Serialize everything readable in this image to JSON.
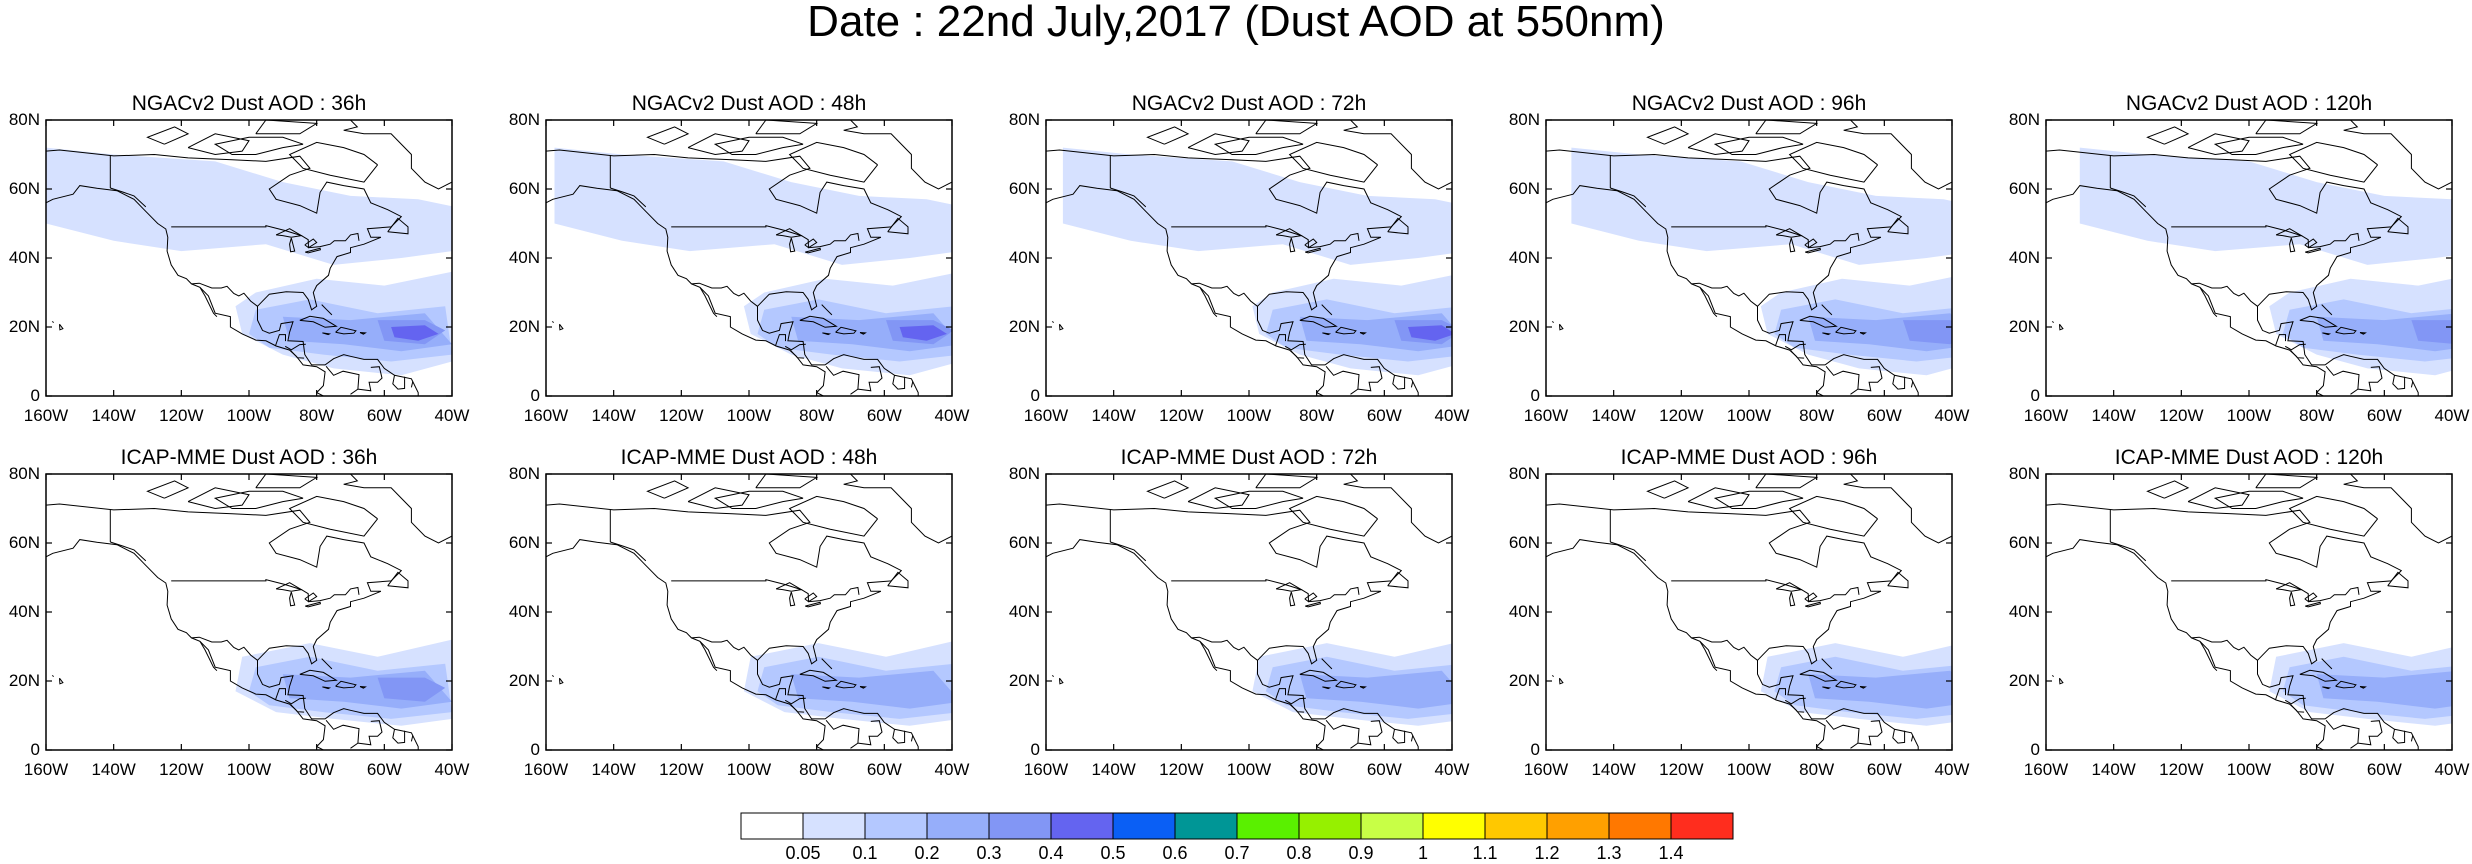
{
  "title": "Date : 22nd July,2017 (Dust AOD at 550nm)",
  "lat_labels": [
    "80N",
    "60N",
    "40N",
    "20N",
    "0"
  ],
  "lon_labels": [
    "160W",
    "140W",
    "120W",
    "100W",
    "80W",
    "60W",
    "40W"
  ],
  "panels": [
    {
      "title": "NGACv2 Dust AOD : 36h",
      "model": "NGACv2",
      "lead": "36h",
      "intensity": 1.0
    },
    {
      "title": "NGACv2 Dust AOD : 48h",
      "model": "NGACv2",
      "lead": "48h",
      "intensity": 1.0
    },
    {
      "title": "NGACv2 Dust AOD : 72h",
      "model": "NGACv2",
      "lead": "72h",
      "intensity": 0.95
    },
    {
      "title": "NGACv2 Dust AOD : 96h",
      "model": "NGACv2",
      "lead": "96h",
      "intensity": 0.9
    },
    {
      "title": "NGACv2 Dust AOD : 120h",
      "model": "NGACv2",
      "lead": "120h",
      "intensity": 0.9
    },
    {
      "title": "ICAP-MME Dust AOD : 36h",
      "model": "ICAP-MME",
      "lead": "36h",
      "intensity": 0.8
    },
    {
      "title": "ICAP-MME Dust AOD : 48h",
      "model": "ICAP-MME",
      "lead": "48h",
      "intensity": 0.75
    },
    {
      "title": "ICAP-MME Dust AOD : 72h",
      "model": "ICAP-MME",
      "lead": "72h",
      "intensity": 0.6
    },
    {
      "title": "ICAP-MME Dust AOD : 96h",
      "model": "ICAP-MME",
      "lead": "96h",
      "intensity": 0.6
    },
    {
      "title": "ICAP-MME Dust AOD : 120h",
      "model": "ICAP-MME",
      "lead": "120h",
      "intensity": 0.55
    }
  ],
  "colorbar": {
    "labels": [
      "0.05",
      "0.1",
      "0.2",
      "0.3",
      "0.4",
      "0.5",
      "0.6",
      "0.7",
      "0.8",
      "0.9",
      "1",
      "1.1",
      "1.2",
      "1.3",
      "1.4"
    ],
    "colors": [
      "#ffffff",
      "#d6e1ff",
      "#b4c8ff",
      "#96aefa",
      "#8296f5",
      "#6464f0",
      "#0a5ff5",
      "#009696",
      "#5af000",
      "#96f000",
      "#c8ff46",
      "#ffff00",
      "#ffc800",
      "#ffa000",
      "#ff7800",
      "#ff2d1e"
    ]
  },
  "map_extent": {
    "lon": [
      -160,
      -40
    ],
    "lat": [
      0,
      80
    ]
  }
}
